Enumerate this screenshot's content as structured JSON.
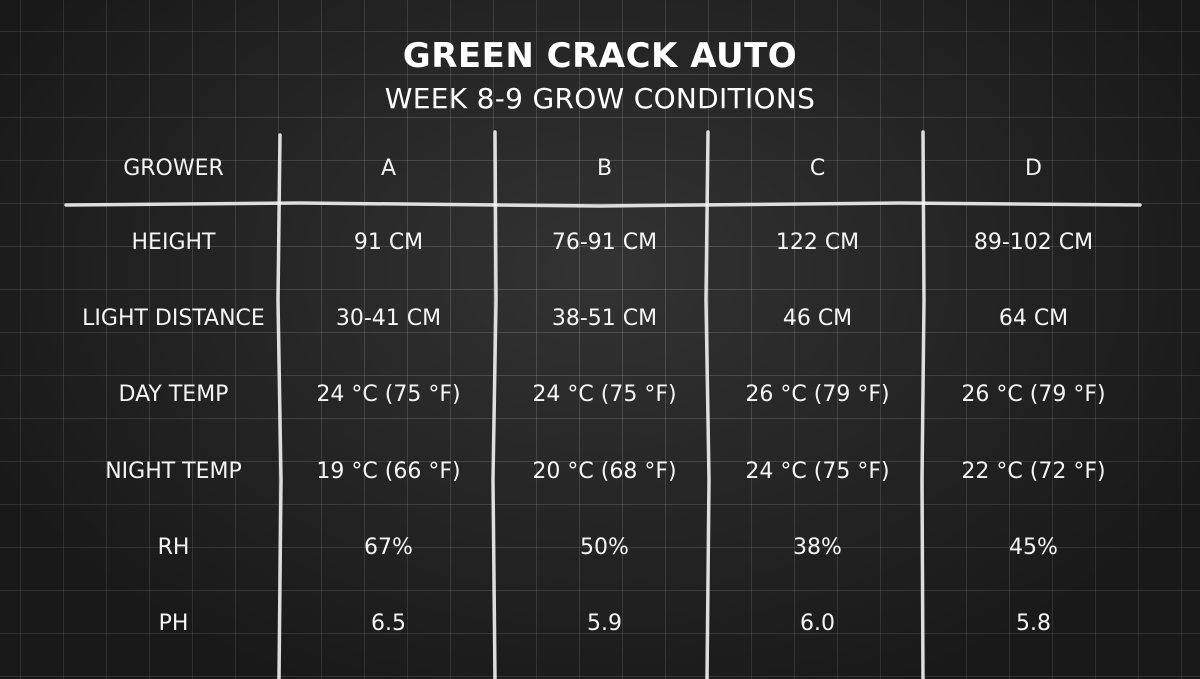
{
  "header": {
    "title": "GREEN CRACK AUTO",
    "subtitle": "WEEK 8-9 GROW CONDITIONS"
  },
  "table": {
    "columns": [
      "GROWER",
      "A",
      "B",
      "C",
      "D"
    ],
    "rows": [
      [
        "HEIGHT",
        "91 CM",
        "76-91 CM",
        "122 CM",
        "89-102 CM"
      ],
      [
        "LIGHT DISTANCE",
        "30-41 CM",
        "38-51 CM",
        "46 CM",
        "64 CM"
      ],
      [
        "DAY TEMP",
        "24 °C (75 °F)",
        "24 °C (75 °F)",
        "26 °C (79 °F)",
        "26 °C (79 °F)"
      ],
      [
        "NIGHT TEMP",
        "19 °C (66 °F)",
        "20 °C (68 °F)",
        "24 °C (75 °F)",
        "22 °C (72 °F)"
      ],
      [
        "RH",
        "67%",
        "50%",
        "38%",
        "45%"
      ],
      [
        "PH",
        "6.5",
        "5.9",
        "6.0",
        "5.8"
      ]
    ]
  }
}
